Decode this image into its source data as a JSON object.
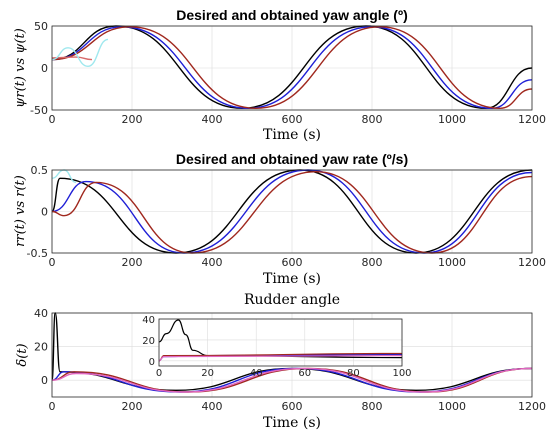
{
  "chart_data": [
    {
      "type": "line",
      "title": "Desired and obtained yaw angle (º)",
      "xlabel": "Time (s)",
      "ylabel": "ψr(t) vs ψ(t)",
      "xlim": [
        0,
        1200
      ],
      "ylim": [
        -50,
        50
      ],
      "xticks": [
        "0",
        "200",
        "400",
        "600",
        "800",
        "1000",
        "1200"
      ],
      "yticks": [
        "-50",
        "0",
        "50"
      ],
      "grid": true,
      "series": [
        {
          "color": "#000000",
          "x": [
            0,
            160,
            475,
            785,
            1085,
            1200
          ],
          "y": [
            10,
            50,
            -48,
            50,
            -48,
            0
          ]
        },
        {
          "color": "#1f1fd6",
          "x": [
            0,
            175,
            490,
            800,
            1100,
            1200
          ],
          "y": [
            10,
            49,
            -48,
            49,
            -48,
            -14
          ]
        },
        {
          "color": "#a0281e",
          "x": [
            0,
            195,
            510,
            820,
            1120,
            1200
          ],
          "y": [
            10,
            49,
            -48,
            49,
            -48,
            -25
          ]
        },
        {
          "color": "#d86a6a",
          "x": [
            0,
            60,
            100
          ],
          "y": [
            12,
            13,
            10
          ]
        },
        {
          "color": "#9fe8ee",
          "x": [
            0,
            40,
            90,
            140
          ],
          "y": [
            10,
            24,
            2,
            34
          ]
        }
      ]
    },
    {
      "type": "line",
      "title": "Desired and obtained yaw rate (º/s)",
      "xlabel": "Time (s)",
      "ylabel": "rr(t) vs r(t)",
      "xlim": [
        0,
        1200
      ],
      "ylim": [
        -0.5,
        0.5
      ],
      "xticks": [
        "0",
        "200",
        "400",
        "600",
        "800",
        "1000",
        "1200"
      ],
      "yticks": [
        "-0.5",
        "0",
        "0.5"
      ],
      "grid": true,
      "series": [
        {
          "color": "#000000",
          "x": [
            0,
            20,
            310,
            620,
            910,
            1200
          ],
          "y": [
            0,
            0.4,
            -0.5,
            0.5,
            -0.5,
            0.5
          ]
        },
        {
          "color": "#1f1fd6",
          "x": [
            0,
            85,
            330,
            640,
            930,
            1200
          ],
          "y": [
            0,
            0.36,
            -0.5,
            0.5,
            -0.5,
            0.47
          ]
        },
        {
          "color": "#a0281e",
          "x": [
            0,
            30,
            110,
            350,
            660,
            950,
            1200
          ],
          "y": [
            0,
            -0.05,
            0.35,
            -0.5,
            0.48,
            -0.5,
            0.42
          ]
        },
        {
          "color": "#9fe8ee",
          "x": [
            0,
            30,
            60
          ],
          "y": [
            0.4,
            0.5,
            0.35
          ]
        }
      ]
    },
    {
      "type": "line",
      "title": "Rudder angle",
      "xlabel": "Time (s)",
      "ylabel": "δ(t)",
      "xlim": [
        0,
        1200
      ],
      "ylim": [
        -10,
        40
      ],
      "xticks": [
        "0",
        "200",
        "400",
        "600",
        "800",
        "1000",
        "1200"
      ],
      "yticks": [
        "0",
        "20",
        "40"
      ],
      "grid": true,
      "series": [
        {
          "color": "#000000",
          "x": [
            0,
            8,
            20,
            310,
            600,
            910,
            1200
          ],
          "y": [
            0,
            40,
            5,
            -6,
            7,
            -6,
            7
          ]
        },
        {
          "color": "#1f1fd6",
          "x": [
            0,
            30,
            320,
            610,
            920,
            1200
          ],
          "y": [
            0,
            5,
            -7,
            7,
            -7,
            7
          ]
        },
        {
          "color": "#a0281e",
          "x": [
            0,
            55,
            340,
            640,
            940,
            1200
          ],
          "y": [
            0,
            5,
            -7,
            7,
            -7,
            7
          ]
        },
        {
          "color": "#e066c0",
          "x": [
            0,
            60,
            330,
            630,
            930,
            1200
          ],
          "y": [
            0,
            4,
            -7,
            7,
            -7,
            7
          ]
        }
      ],
      "inset": {
        "xlim": [
          0,
          100
        ],
        "ylim": [
          -5,
          40
        ],
        "xticks": [
          "0",
          "20",
          "40",
          "60",
          "80",
          "100"
        ],
        "yticks": [
          "0",
          "20",
          "40"
        ],
        "series": [
          {
            "color": "#000000",
            "x": [
              0,
              3,
              8,
              11,
              14,
              20,
              100
            ],
            "y": [
              18,
              26,
              39,
              25,
              10,
              5,
              3
            ]
          },
          {
            "color": "#1f1fd6",
            "x": [
              0,
              2,
              20,
              100
            ],
            "y": [
              0,
              4,
              5,
              6
            ]
          },
          {
            "color": "#a0281e",
            "x": [
              0,
              2,
              100
            ],
            "y": [
              0,
              5,
              7
            ]
          },
          {
            "color": "#e066c0",
            "x": [
              0,
              2,
              100
            ],
            "y": [
              0,
              4,
              5
            ]
          }
        ]
      }
    }
  ]
}
